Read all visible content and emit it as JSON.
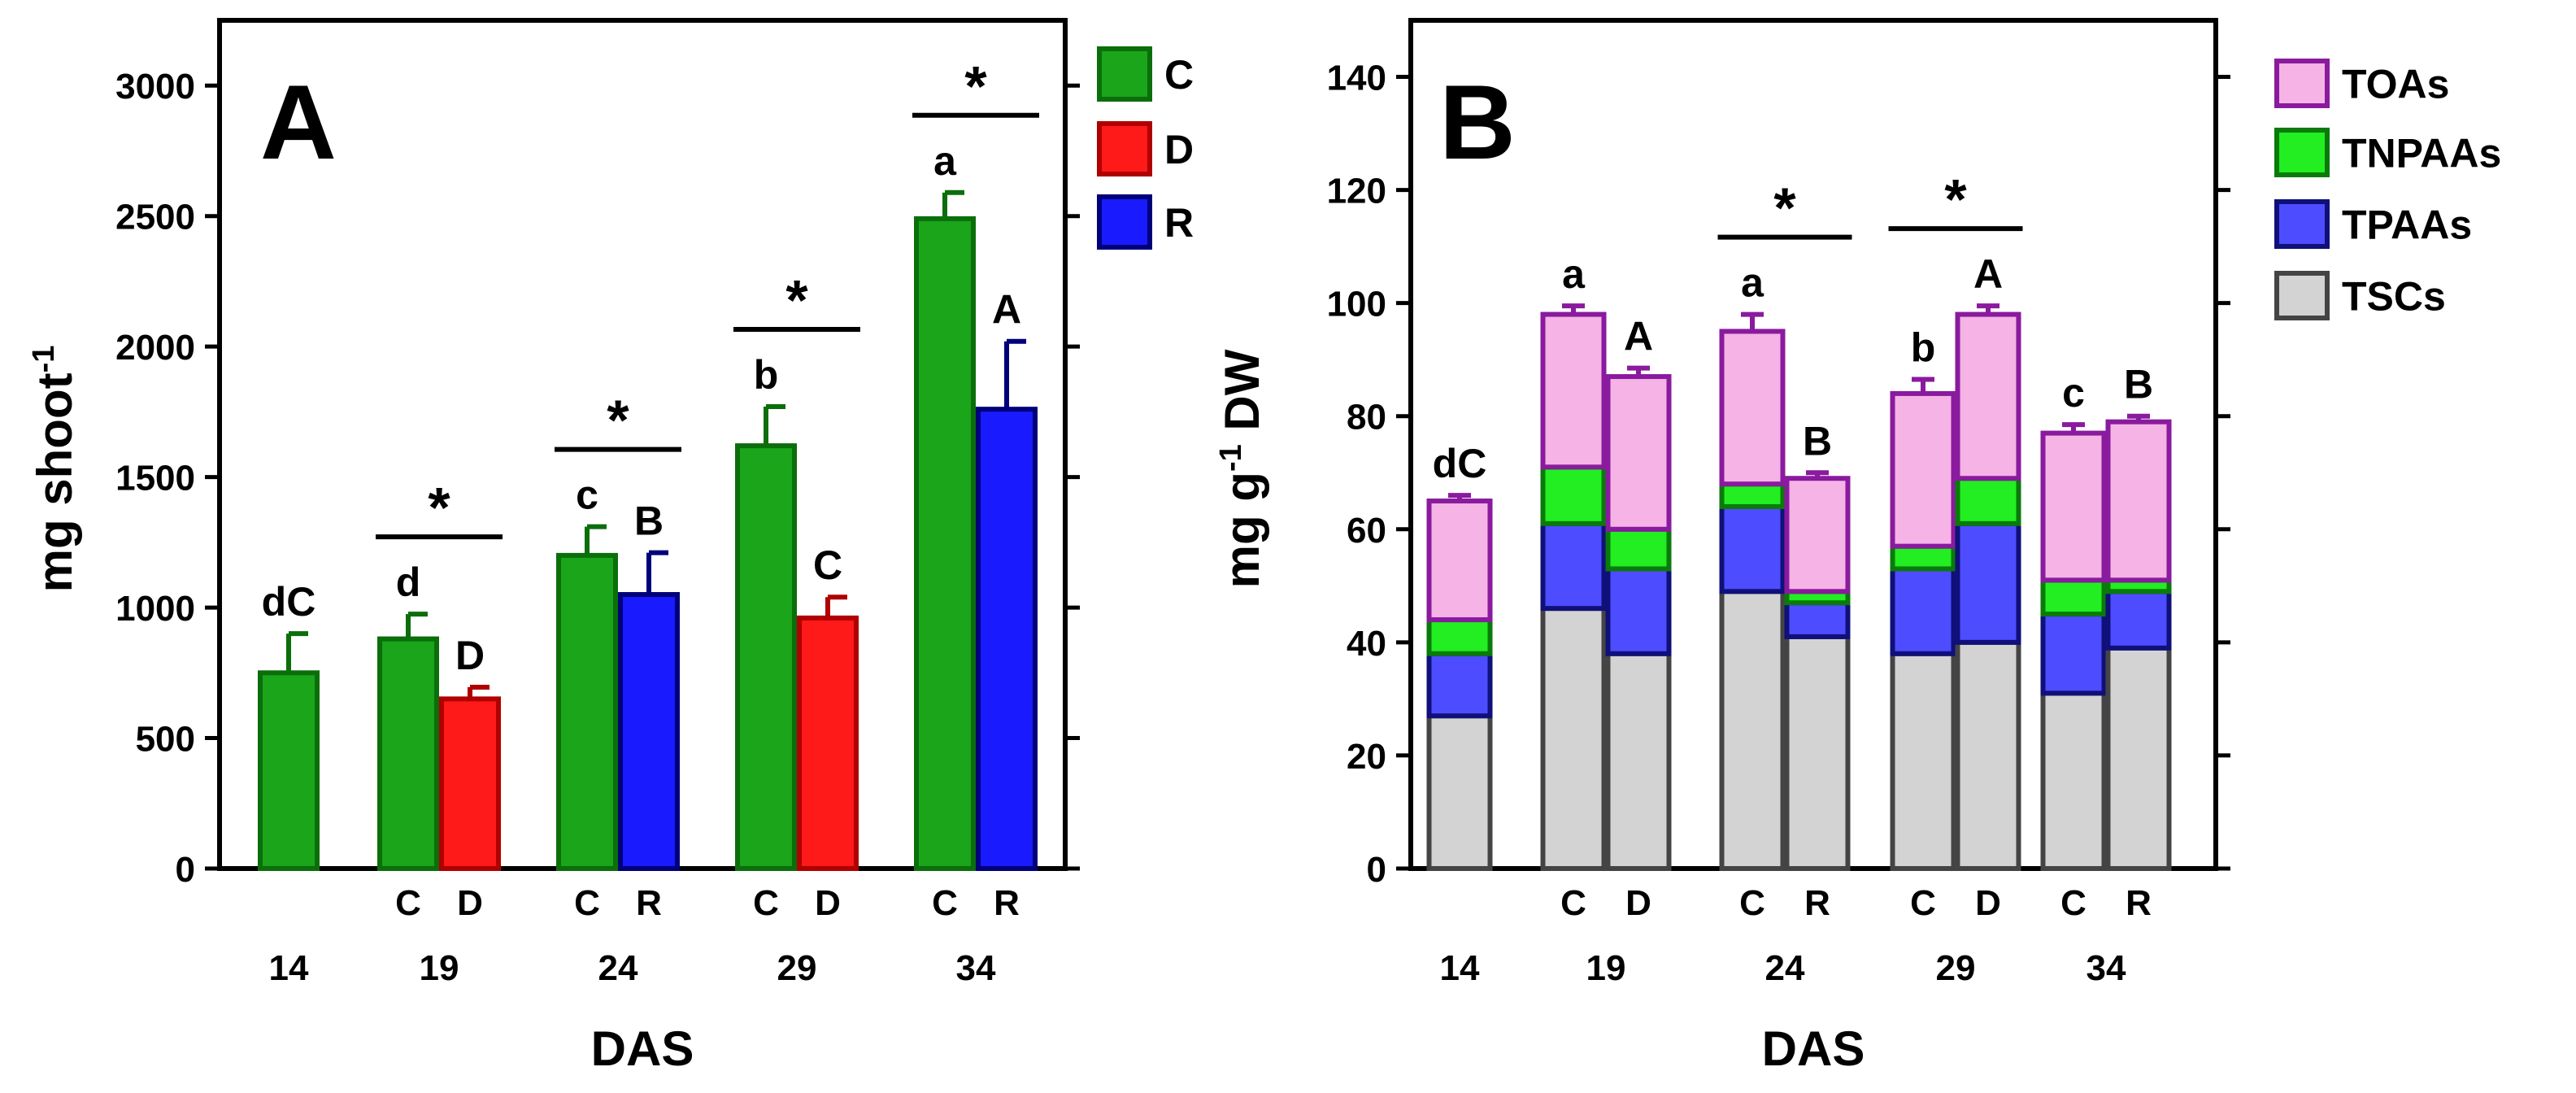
{
  "colors": {
    "C": "#1aa51a",
    "C_edge": "#0b6e0b",
    "D": "#ff1a1a",
    "D_edge": "#b00000",
    "R": "#1a1aff",
    "R_edge": "#00007a",
    "TOAs": "#f5b3e6",
    "TOAs_edge": "#8a1a9e",
    "TNPAAs": "#22ee22",
    "TNPAAs_edge": "#0a7a0a",
    "TPAAs": "#4d4dff",
    "TPAAs_edge": "#10107a",
    "TSCs": "#d3d3d3",
    "TSCs_edge": "#444444"
  },
  "chart_data": [
    {
      "panel": "A",
      "type": "bar",
      "title": "A",
      "xlabel": "DAS",
      "ylabel_main": "mg shoot",
      "ylabel_sup": "-1",
      "ylim": [
        0,
        3250
      ],
      "yticks": [
        0,
        500,
        1000,
        1500,
        2000,
        2500,
        3000
      ],
      "legend": [
        {
          "key": "C",
          "label": "C"
        },
        {
          "key": "D",
          "label": "D"
        },
        {
          "key": "R",
          "label": "R"
        }
      ],
      "groups": [
        {
          "das": "14",
          "bars": [
            {
              "treatment": "C",
              "show_label": false,
              "value": 750,
              "err": 150,
              "letter": "dC"
            }
          ]
        },
        {
          "das": "19",
          "star": "*",
          "bars": [
            {
              "treatment": "C",
              "show_label": true,
              "value": 880,
              "err": 95,
              "letter": "d"
            },
            {
              "treatment": "D",
              "show_label": true,
              "value": 650,
              "err": 45,
              "letter": "D"
            }
          ]
        },
        {
          "das": "24",
          "star": "*",
          "bars": [
            {
              "treatment": "C",
              "show_label": true,
              "value": 1200,
              "err": 110,
              "letter": "c"
            },
            {
              "treatment": "R",
              "show_label": true,
              "value": 1050,
              "err": 160,
              "letter": "B"
            }
          ]
        },
        {
          "das": "29",
          "star": "*",
          "bars": [
            {
              "treatment": "C",
              "show_label": true,
              "value": 1620,
              "err": 150,
              "letter": "b"
            },
            {
              "treatment": "D",
              "show_label": true,
              "value": 960,
              "err": 80,
              "letter": "C"
            }
          ]
        },
        {
          "das": "34",
          "star": "*",
          "bars": [
            {
              "treatment": "C",
              "show_label": true,
              "value": 2490,
              "err": 100,
              "letter": "a"
            },
            {
              "treatment": "R",
              "show_label": true,
              "value": 1760,
              "err": 260,
              "letter": "A"
            }
          ]
        }
      ]
    },
    {
      "panel": "B",
      "type": "stacked_bar",
      "title": "B",
      "xlabel": "DAS",
      "ylabel_main": "mg g",
      "ylabel_sup": "-1",
      "ylabel_tail": " DW",
      "ylim": [
        0,
        150
      ],
      "yticks": [
        0,
        20,
        40,
        60,
        80,
        100,
        120,
        140
      ],
      "legend": [
        {
          "key": "TOAs",
          "label": "TOAs"
        },
        {
          "key": "TNPAAs",
          "label": "TNPAAs"
        },
        {
          "key": "TPAAs",
          "label": "TPAAs"
        },
        {
          "key": "TSCs",
          "label": "TSCs"
        }
      ],
      "stack_order": [
        "TSCs",
        "TPAAs",
        "TNPAAs",
        "TOAs"
      ],
      "groups": [
        {
          "das": "14",
          "bars": [
            {
              "treatment": "C",
              "show_label": false,
              "letter": "dC",
              "segments": {
                "TSCs": 27,
                "TPAAs": 11,
                "TNPAAs": 6,
                "TOAs": 21
              },
              "errors": {
                "TSCs": 1.5,
                "TPAAs": 2,
                "TNPAAs": 2,
                "TOAs": 1
              }
            }
          ]
        },
        {
          "das": "19",
          "bars": [
            {
              "treatment": "C",
              "show_label": true,
              "letter": "a",
              "segments": {
                "TSCs": 46,
                "TPAAs": 15,
                "TNPAAs": 10,
                "TOAs": 27
              },
              "errors": {
                "TSCs": 3.5,
                "TPAAs": 1.5,
                "TNPAAs": 1.5,
                "TOAs": 1.5
              }
            },
            {
              "treatment": "D",
              "show_label": true,
              "letter": "A",
              "segments": {
                "TSCs": 38,
                "TPAAs": 15,
                "TNPAAs": 7,
                "TOAs": 27
              },
              "errors": {
                "TSCs": 5,
                "TPAAs": 2,
                "TNPAAs": 2,
                "TOAs": 1.5
              }
            }
          ]
        },
        {
          "das": "24",
          "star": "*",
          "bars": [
            {
              "treatment": "C",
              "show_label": true,
              "letter": "a",
              "segments": {
                "TSCs": 49,
                "TPAAs": 15,
                "TNPAAs": 4,
                "TOAs": 27
              },
              "errors": {
                "TSCs": 3,
                "TPAAs": 2,
                "TNPAAs": 1.5,
                "TOAs": 3
              }
            },
            {
              "treatment": "R",
              "show_label": true,
              "letter": "B",
              "segments": {
                "TSCs": 41,
                "TPAAs": 6,
                "TNPAAs": 2,
                "TOAs": 20
              },
              "errors": {
                "TSCs": 1.5,
                "TPAAs": 1.5,
                "TNPAAs": 1,
                "TOAs": 1
              }
            }
          ]
        },
        {
          "das": "29",
          "star": "*",
          "bars": [
            {
              "treatment": "C",
              "show_label": true,
              "letter": "b",
              "segments": {
                "TSCs": 38,
                "TPAAs": 15,
                "TNPAAs": 4,
                "TOAs": 27
              },
              "errors": {
                "TSCs": 2,
                "TPAAs": 1.5,
                "TNPAAs": 1.5,
                "TOAs": 2.5
              }
            },
            {
              "treatment": "D",
              "show_label": true,
              "letter": "A",
              "segments": {
                "TSCs": 40,
                "TPAAs": 21,
                "TNPAAs": 8,
                "TOAs": 29
              },
              "errors": {
                "TSCs": 2,
                "TPAAs": 1.5,
                "TNPAAs": 1.5,
                "TOAs": 1.5
              }
            }
          ]
        },
        {
          "das": "34",
          "bars": [
            {
              "treatment": "C",
              "show_label": true,
              "letter": "c",
              "segments": {
                "TSCs": 31,
                "TPAAs": 14,
                "TNPAAs": 6,
                "TOAs": 26
              },
              "errors": {
                "TSCs": 1,
                "TPAAs": 2,
                "TNPAAs": 2.5,
                "TOAs": 1.5
              }
            },
            {
              "treatment": "R",
              "show_label": true,
              "letter": "B",
              "segments": {
                "TSCs": 39,
                "TPAAs": 10,
                "TNPAAs": 2,
                "TOAs": 28
              },
              "errors": {
                "TSCs": 5,
                "TPAAs": 1.5,
                "TNPAAs": 1,
                "TOAs": 1
              }
            }
          ]
        }
      ]
    }
  ]
}
